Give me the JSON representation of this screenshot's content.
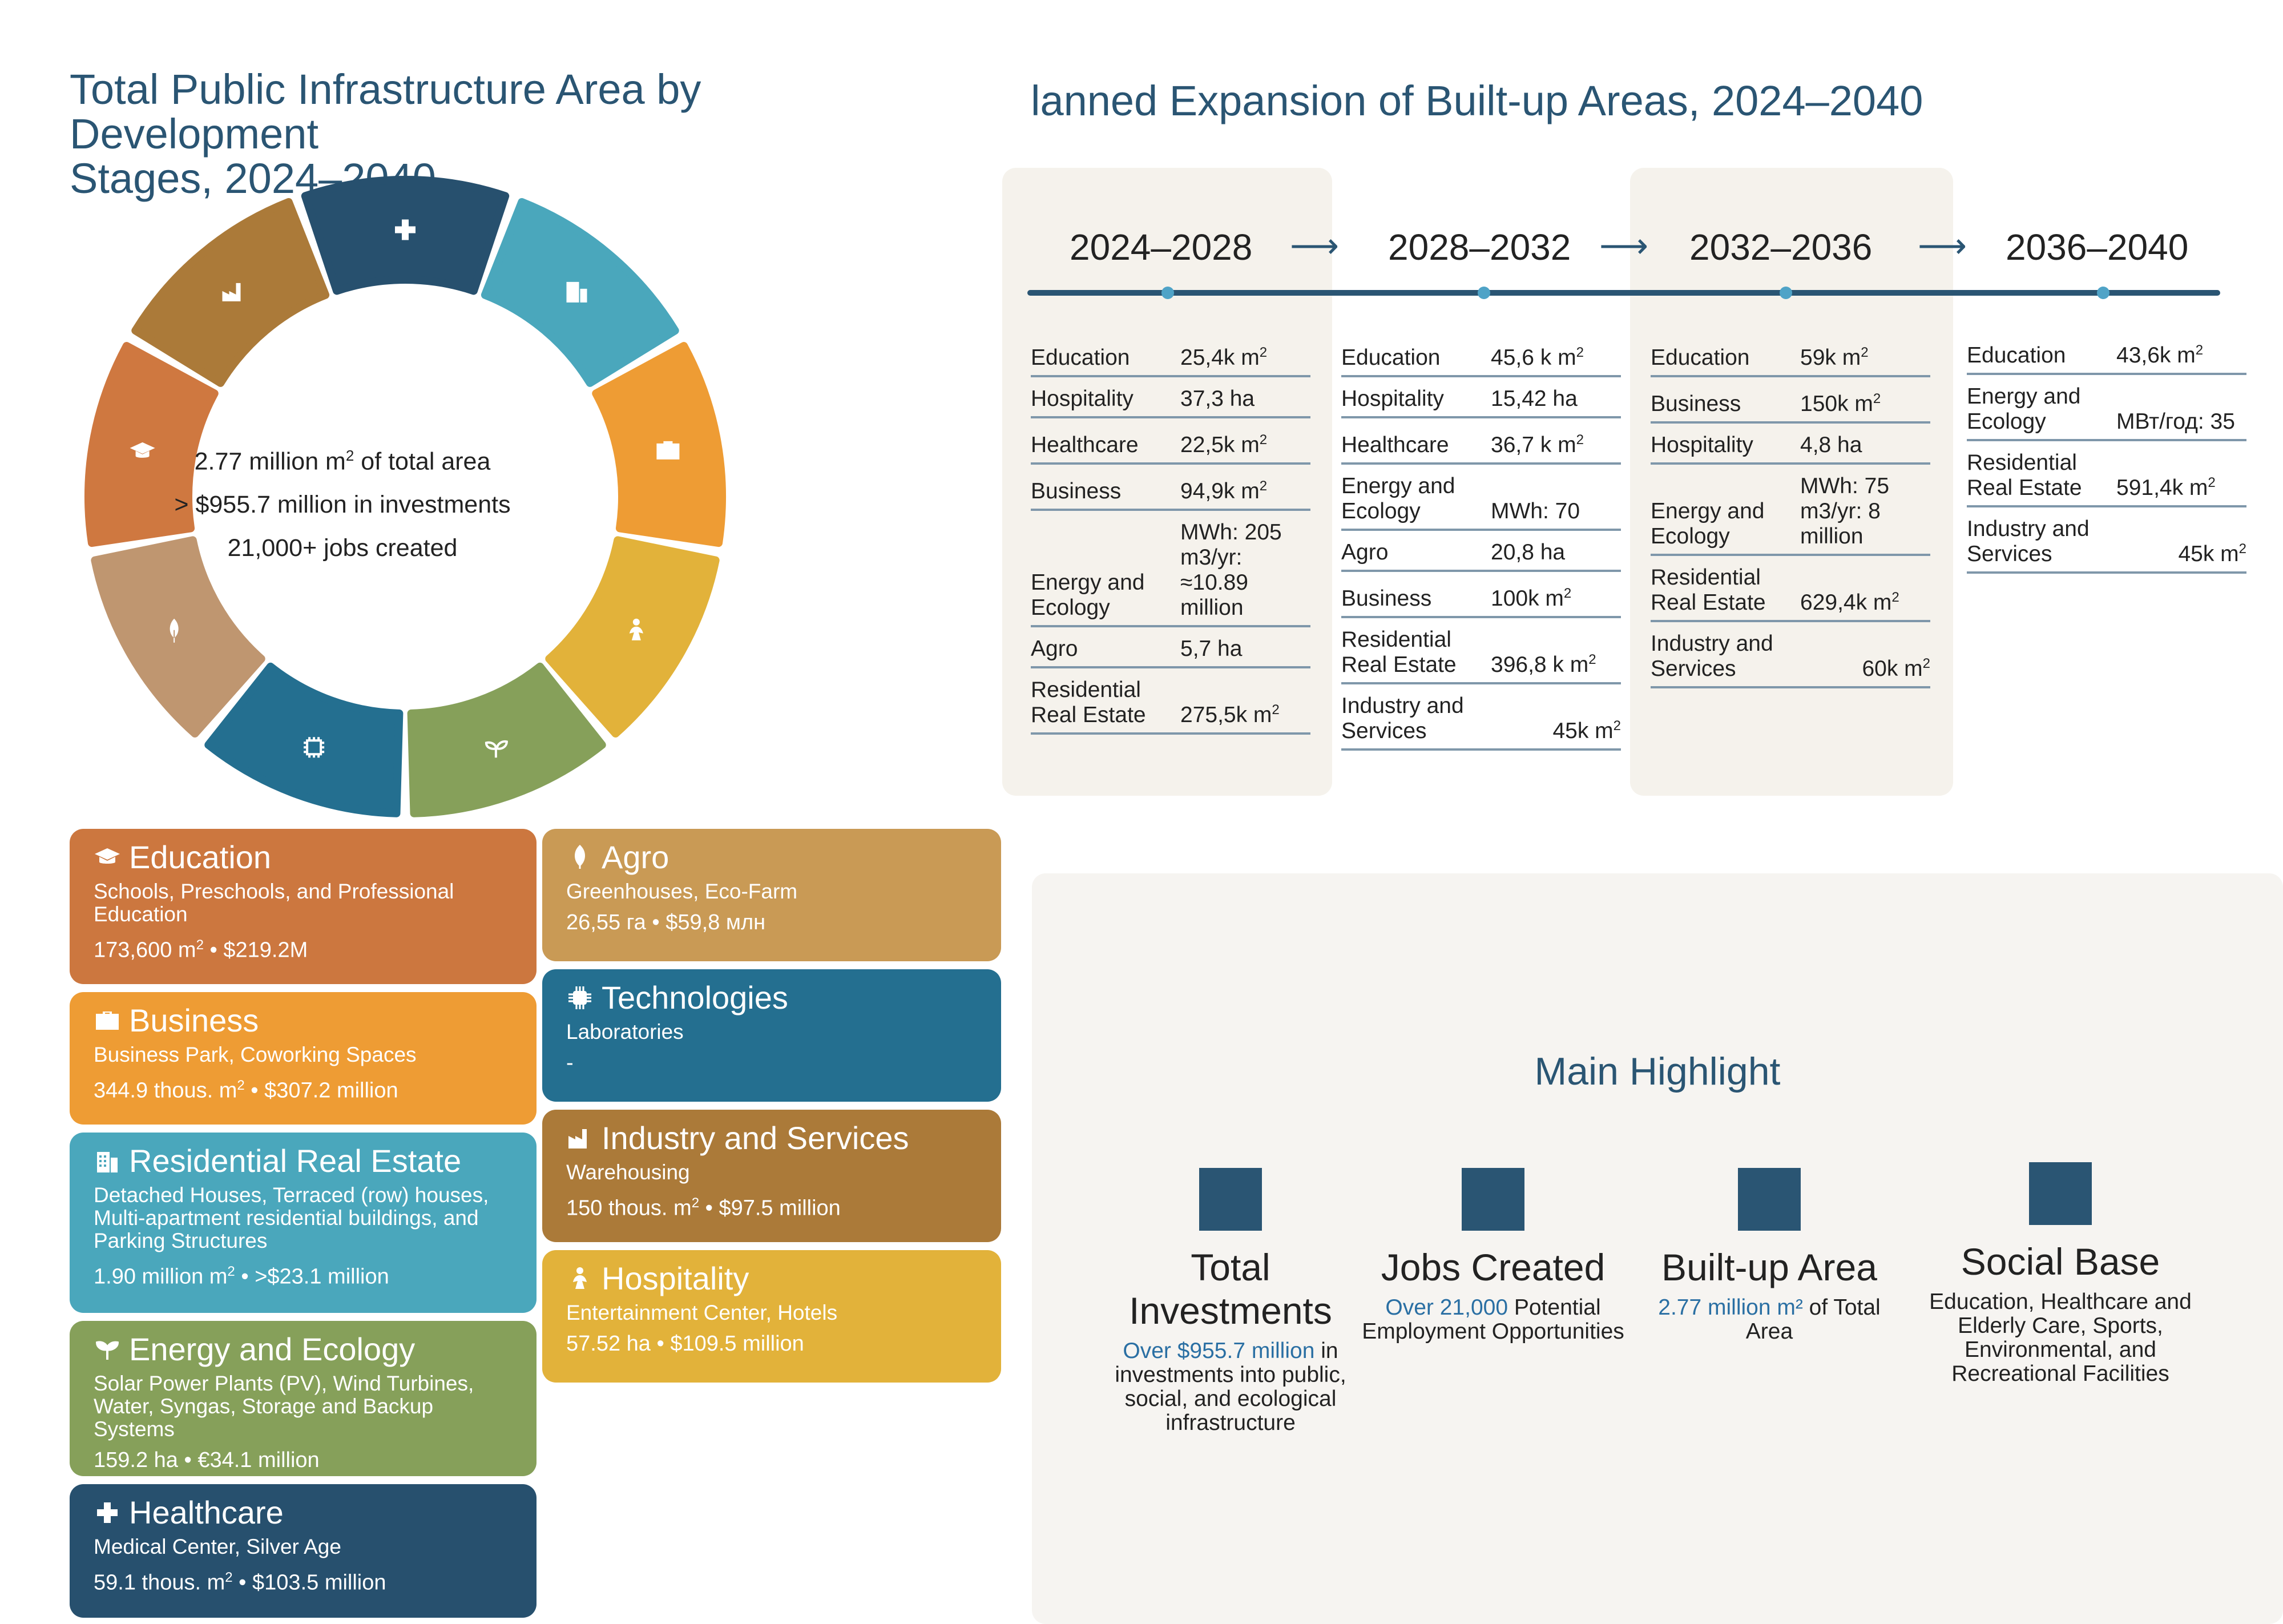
{
  "left_title_line1": "Total Public Infrastructure Area by Development",
  "left_title_line2": "Stages, 2024–2040",
  "right_title": "lanned Expansion of Built-up Areas, 2024–2040",
  "donut_center": {
    "line1_prefix": "2.77 million m",
    "line1_sup": "2",
    "line1_suffix": " of total area",
    "line2": "> $955.7 million in investments",
    "line3": "21,000+ jobs created"
  },
  "donut_segments": [
    {
      "name": "healthcare",
      "color": "#27506e",
      "icon": "cross-icon"
    },
    {
      "name": "residential",
      "color": "#4aa7bc",
      "icon": "building-icon"
    },
    {
      "name": "business",
      "color": "#ee9c34",
      "icon": "briefcase-icon"
    },
    {
      "name": "hospitality",
      "color": "#e2b23a",
      "icon": "person-icon"
    },
    {
      "name": "energy",
      "color": "#86a05a",
      "icon": "sprout-icon"
    },
    {
      "name": "technologies",
      "color": "#246f90",
      "icon": "chip-icon"
    },
    {
      "name": "agro",
      "color": "#bf9670",
      "icon": "leaf-icon"
    },
    {
      "name": "education",
      "color": "#cf7840",
      "icon": "graduation-cap-icon"
    },
    {
      "name": "industry",
      "color": "#ab7a39",
      "icon": "factory-icon"
    }
  ],
  "cards": {
    "education": {
      "title": "Education",
      "desc": "Schools, Preschools, and Professional Education",
      "stat_prefix": "173,600 m",
      "stat_suffix": " • $219.2M",
      "color": "#cc773f"
    },
    "business": {
      "title": "Business",
      "desc": "Business Park, Coworking Spaces",
      "stat_prefix": "344.9 thous. m",
      "stat_suffix": " • $307.2 million",
      "color": "#ee9c34"
    },
    "residential": {
      "title": "Residential Real Estate",
      "desc": "Detached Houses, Terraced (row) houses, Multi-apartment residential buildings, and Parking Structures",
      "stat_prefix": "1.90 million m",
      "stat_suffix": " • >$23.1 million",
      "color": "#4aa7bc"
    },
    "energy": {
      "title": "Energy and Ecology",
      "desc": "Solar Power Plants (PV), Wind Turbines, Water, Syngas, Storage and Backup Systems",
      "stat": "159.2 ha • €34.1 million",
      "color": "#86a05a"
    },
    "healthcare": {
      "title": "Healthcare",
      "desc": "Medical Center, Silver Age",
      "stat_prefix": "59.1 thous. m",
      "stat_suffix": " • $103.5 million",
      "color": "#27506e"
    },
    "agro": {
      "title": "Agro",
      "desc": "Greenhouses, Eco-Farm",
      "stat": "26,55 га • $59,8 млн",
      "color": "#c99a55"
    },
    "technologies": {
      "title": "Technologies",
      "desc": "Laboratories",
      "stat": "-",
      "color": "#246f90"
    },
    "industry": {
      "title": "Industry and Services",
      "desc": "Warehousing",
      "stat_prefix": "150 thous. m",
      "stat_suffix": " • $97.5 million",
      "color": "#ab7a39"
    },
    "hospitality": {
      "title": "Hospitality",
      "desc": "Entertainment Center, Hotels",
      "stat": "57.52 ha • $109.5 million",
      "color": "#e2b23a"
    }
  },
  "sup2": "2",
  "timeline": {
    "periods": [
      "2024–2028",
      "2028–2032",
      "2032–2036",
      "2036–2040"
    ],
    "arrow": "⟶",
    "p1": [
      {
        "label": "Education",
        "value": "25,4k m",
        "sup": "2"
      },
      {
        "label": "Hospitality",
        "value": "37,3 ha"
      },
      {
        "label": "Healthcare",
        "value": "22,5k m",
        "sup": "2"
      },
      {
        "label": "Business",
        "value": "94,9k m",
        "sup": "2"
      },
      {
        "label": "Energy and Ecology",
        "value": "MWh: 205 m3/yr: ≈10.89 million"
      },
      {
        "label": "Agro",
        "value": "5,7 ha"
      },
      {
        "label": "Residential Real Estate",
        "value": "275,5k m",
        "sup": "2"
      }
    ],
    "p2": [
      {
        "label": "Education",
        "value": "45,6 k m",
        "sup": "2"
      },
      {
        "label": "Hospitality",
        "value": "15,42 ha"
      },
      {
        "label": "Healthcare",
        "value": "36,7 k m",
        "sup": "2"
      },
      {
        "label": "Energy and Ecology",
        "value": "MWh: 70"
      },
      {
        "label": "Agro",
        "value": "20,8 ha"
      },
      {
        "label": "Business",
        "value": "100k m",
        "sup": "2"
      },
      {
        "label": "Residential Real Estate",
        "value": "396,8 k m",
        "sup": "2"
      },
      {
        "label": "Industry and Services",
        "value": "45k m",
        "sup": "2"
      }
    ],
    "p3": [
      {
        "label": "Education",
        "value": "59k m",
        "sup": "2"
      },
      {
        "label": "Business",
        "value": "150k m",
        "sup": "2"
      },
      {
        "label": "Hospitality",
        "value": "4,8 ha"
      },
      {
        "label": "Energy and Ecology",
        "value": "MWh: 75 m3/yr: 8 million"
      },
      {
        "label": "Residential Real Estate",
        "value": "629,4k m",
        "sup": "2"
      },
      {
        "label": "Industry and Services",
        "value": "60k m",
        "sup": "2"
      }
    ],
    "p4": [
      {
        "label": "Education",
        "value": "43,6k m",
        "sup": "2"
      },
      {
        "label": "Energy and Ecology",
        "value": "МВт/год: 35"
      },
      {
        "label": "Residential Real Estate",
        "value": "591,4k m",
        "sup": "2"
      },
      {
        "label": "Industry and Services",
        "value": "45k m",
        "sup": "2"
      }
    ]
  },
  "highlight": {
    "title": "Main Highlight",
    "items": [
      {
        "head": "Total Investments",
        "accent": "Over $955.7 million",
        "rest": " in investments into public, social, and ecological infrastructure"
      },
      {
        "head": "Jobs Created",
        "accent": "Over 21,000",
        "rest": " Potential Employment Opportunities"
      },
      {
        "head": "Built-up Area",
        "accent": "2.77 million m²",
        "rest": " of Total Area"
      },
      {
        "head": "Social Base",
        "accent": "",
        "rest": "Education, Healthcare and Elderly Care, Sports, Environmental, and Recreational Facilities"
      }
    ]
  }
}
